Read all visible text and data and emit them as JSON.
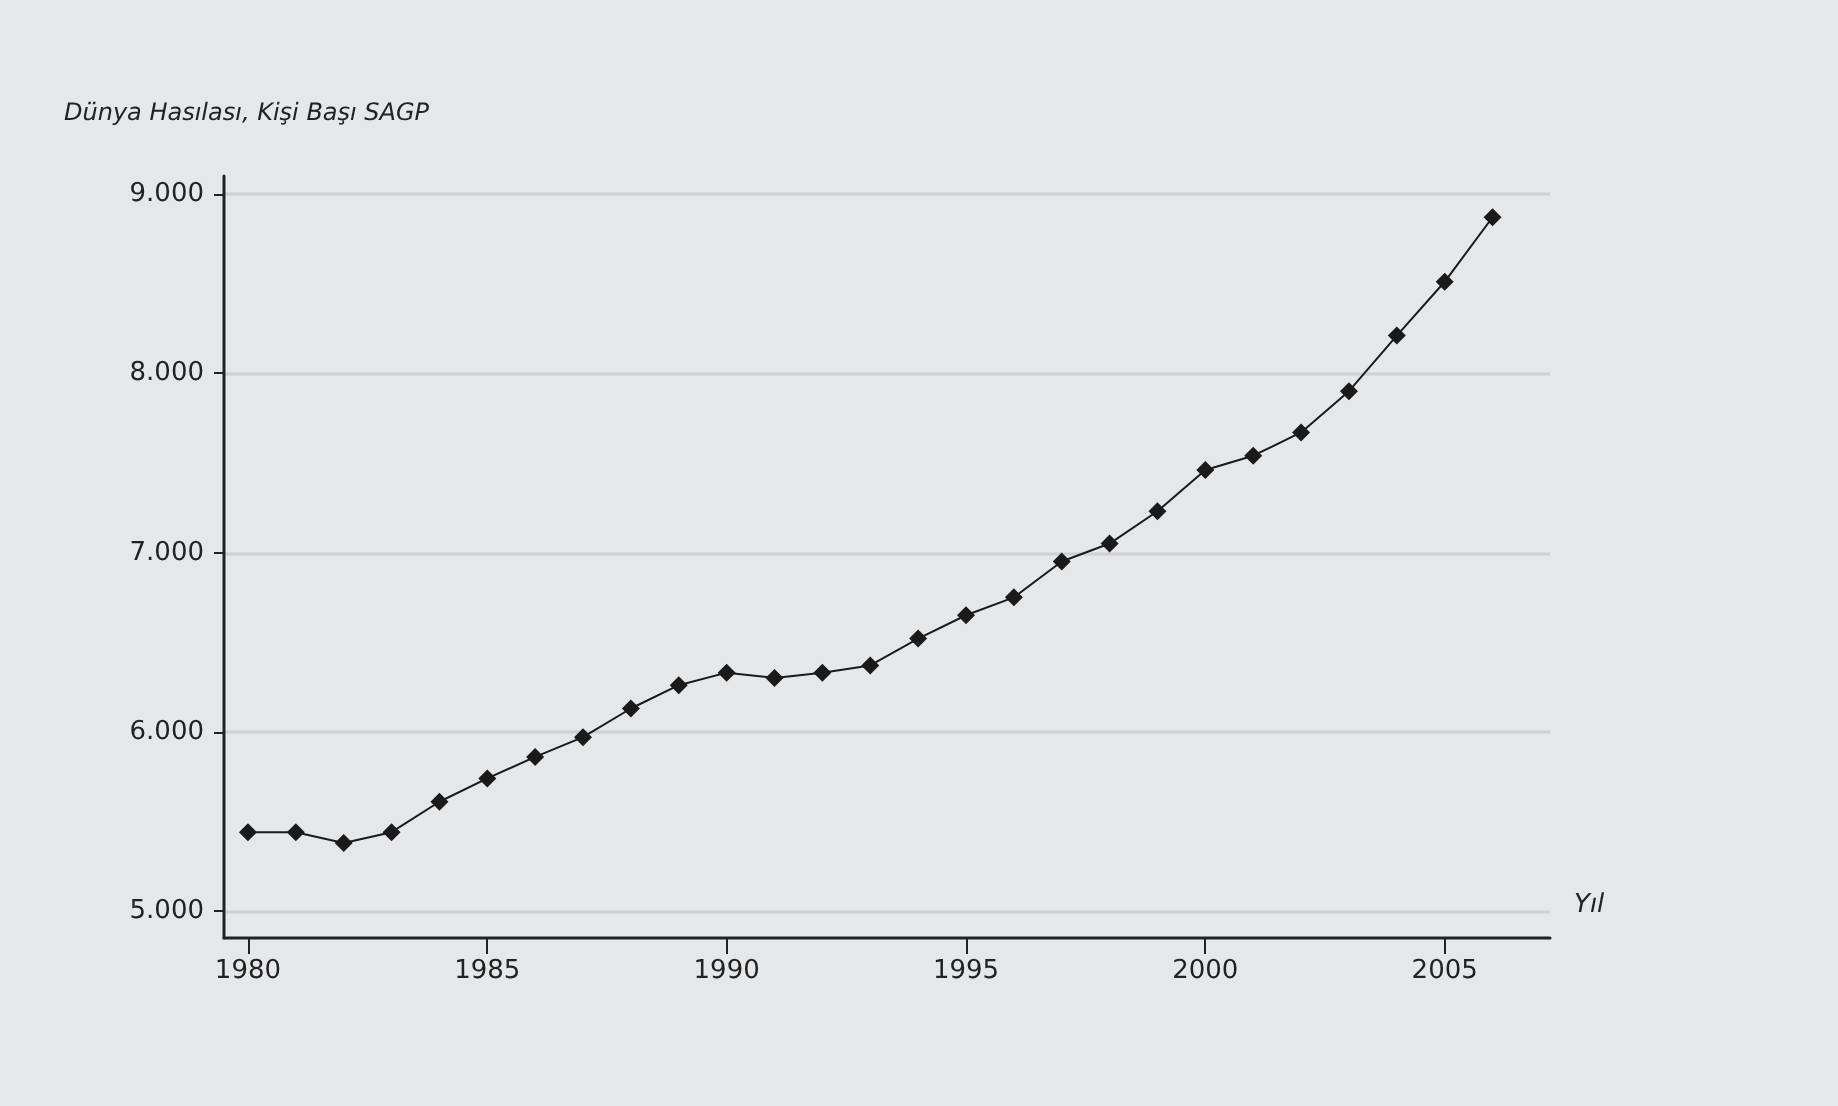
{
  "chart_data": {
    "type": "line",
    "ylabel": "Dünya Hasılası, Kişi Başı SAGP",
    "xlabel": "Yıl",
    "x": [
      1980,
      1981,
      1982,
      1983,
      1984,
      1985,
      1986,
      1987,
      1988,
      1989,
      1990,
      1991,
      1992,
      1993,
      1994,
      1995,
      1996,
      1997,
      1998,
      1999,
      2000,
      2001,
      2002,
      2003,
      2004,
      2005,
      2006
    ],
    "series": [
      {
        "color": "#1a1a1a",
        "values": [
          5440,
          5440,
          5380,
          5440,
          5610,
          5740,
          5860,
          5970,
          6130,
          6260,
          6330,
          6300,
          6330,
          6370,
          6520,
          6650,
          6750,
          6950,
          7050,
          7230,
          7460,
          7540,
          7670,
          7900,
          8210,
          8510,
          8870
        ]
      }
    ],
    "xlim": [
      1979.5,
      2007.2
    ],
    "xticks": [
      1980,
      1985,
      1990,
      1995,
      2000,
      2005
    ],
    "ylim": [
      4850,
      9100
    ],
    "yticks": [
      {
        "value": 5000,
        "label": "5.000"
      },
      {
        "value": 6000,
        "label": "6.000"
      },
      {
        "value": 7000,
        "label": "7.000"
      },
      {
        "value": 8000,
        "label": "8.000"
      },
      {
        "value": 9000,
        "label": "9.000"
      }
    ],
    "grid": "y",
    "marker": "diamond",
    "line_style": "solid"
  }
}
